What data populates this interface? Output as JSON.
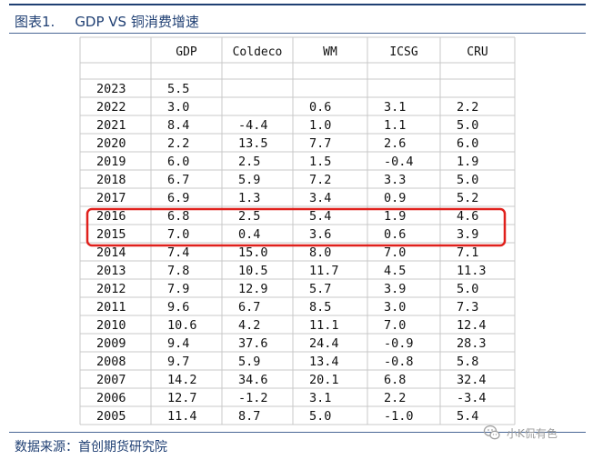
{
  "header": {
    "number": "图表1.",
    "title": "GDP VS 铜消费增速"
  },
  "footer": {
    "source": "数据来源：首创期货研究院"
  },
  "watermark": {
    "text": "小K侃有色",
    "icon": "wechat-icon"
  },
  "colors": {
    "brand": "#1f3f73",
    "highlight": "#e0201c",
    "grid": "#c9c9c9"
  },
  "chart_data": {
    "type": "table",
    "columns": [
      "",
      "GDP",
      "Coldeco",
      "WM",
      "ICSG",
      "CRU"
    ],
    "rows": [
      [
        "2023",
        "5.5",
        "",
        "",
        "",
        ""
      ],
      [
        "2022",
        "3.0",
        "",
        "0.6",
        "3.1",
        "2.2"
      ],
      [
        "2021",
        "8.4",
        "-4.4",
        "1.0",
        "1.1",
        "5.0"
      ],
      [
        "2020",
        "2.2",
        "13.5",
        "7.7",
        "2.6",
        "6.0"
      ],
      [
        "2019",
        "6.0",
        "2.5",
        "1.5",
        "-0.4",
        "1.9"
      ],
      [
        "2018",
        "6.7",
        "5.9",
        "7.2",
        "3.3",
        "5.0"
      ],
      [
        "2017",
        "6.9",
        "1.3",
        "3.4",
        "0.9",
        "5.2"
      ],
      [
        "2016",
        "6.8",
        "2.5",
        "5.4",
        "1.9",
        "4.6"
      ],
      [
        "2015",
        "7.0",
        "0.4",
        "3.6",
        "0.6",
        "3.9"
      ],
      [
        "2014",
        "7.4",
        "15.0",
        "8.0",
        "7.0",
        "7.1"
      ],
      [
        "2013",
        "7.8",
        "10.5",
        "11.7",
        "4.5",
        "11.3"
      ],
      [
        "2012",
        "7.9",
        "12.9",
        "5.7",
        "3.9",
        "5.0"
      ],
      [
        "2011",
        "9.6",
        "6.7",
        "8.5",
        "3.0",
        "7.3"
      ],
      [
        "2010",
        "10.6",
        "4.2",
        "11.1",
        "7.0",
        "12.4"
      ],
      [
        "2009",
        "9.4",
        "37.6",
        "24.4",
        "-0.9",
        "28.3"
      ],
      [
        "2008",
        "9.7",
        "5.9",
        "13.4",
        "-0.8",
        "5.8"
      ],
      [
        "2007",
        "14.2",
        "34.6",
        "20.1",
        "6.8",
        "32.4"
      ],
      [
        "2006",
        "12.7",
        "-1.2",
        "3.1",
        "2.2",
        "-3.4"
      ],
      [
        "2005",
        "11.4",
        "8.7",
        "5.0",
        "-1.0",
        "5.4"
      ]
    ],
    "highlighted_rows": [
      "2016",
      "2015"
    ]
  }
}
